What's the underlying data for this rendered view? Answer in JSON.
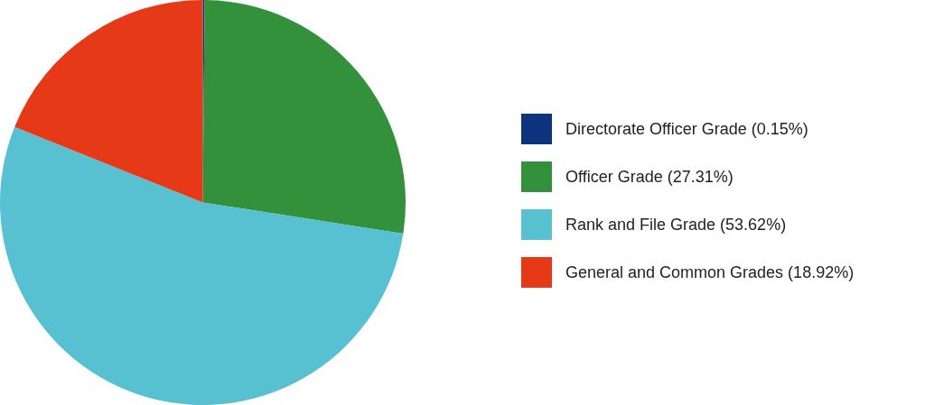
{
  "chart_data": {
    "type": "pie",
    "categories": [
      "Directorate Officer Grade (0.15%)",
      "Officer Grade (27.31%)",
      "Rank and File Grade (53.62%)",
      "General and Common Grades (18.92%)"
    ],
    "values": [
      0.15,
      27.31,
      53.62,
      18.92
    ],
    "colors": [
      "#0d357f",
      "#34913b",
      "#57c1d2",
      "#e63917"
    ],
    "legend": "right"
  }
}
